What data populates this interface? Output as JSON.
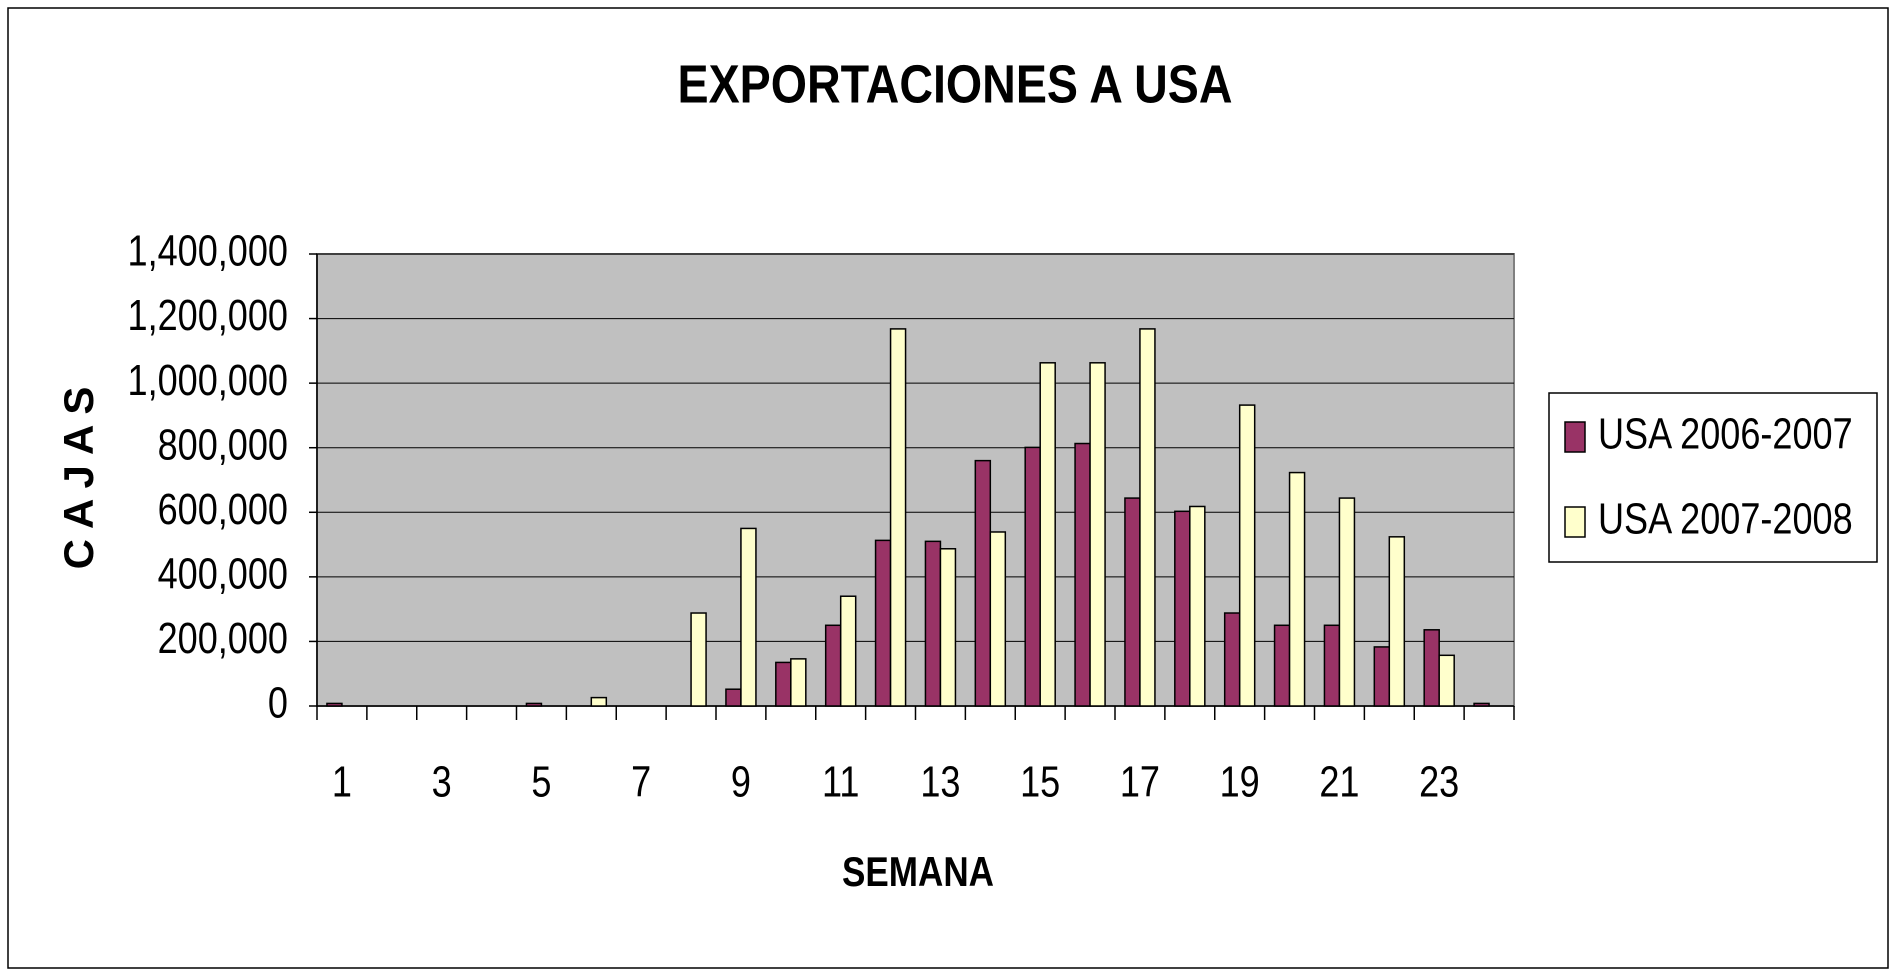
{
  "chart_data": {
    "type": "bar",
    "title": "EXPORTACIONES A USA",
    "x_label": "SEMANA",
    "y_label": "C A J A S",
    "categories": [
      "1",
      null,
      "3",
      null,
      "5",
      null,
      "7",
      null,
      "9",
      null,
      "11",
      null,
      "13",
      null,
      "15",
      null,
      "17",
      null,
      "19",
      null,
      "21",
      null,
      "23",
      null
    ],
    "series": [
      {
        "name": "USA 2006-2007",
        "color": "#993366",
        "values": [
          8000,
          0,
          0,
          0,
          8000,
          0,
          0,
          0,
          52000,
          135000,
          250000,
          513000,
          510000,
          760000,
          801000,
          813000,
          644000,
          603000,
          288000,
          250000,
          250000,
          183000,
          236000,
          8000
        ]
      },
      {
        "name": "USA 2007-2008",
        "color": "#ffffcc",
        "values": [
          0,
          0,
          0,
          0,
          0,
          26000,
          0,
          288000,
          550000,
          146000,
          340000,
          1168000,
          487000,
          539000,
          1063000,
          1063000,
          1168000,
          618000,
          932000,
          723000,
          644000,
          524000,
          157000,
          0
        ]
      }
    ],
    "ylim": [
      0,
      1400000
    ],
    "yticks": [
      0,
      {
        "value": 200000,
        "label": "200,000"
      },
      {
        "value": 400000,
        "label": "400,000"
      },
      {
        "value": 600000,
        "label": "600,000"
      },
      {
        "value": 800000,
        "label": "800,000"
      },
      {
        "value": 1000000,
        "label": "1,000,000"
      },
      {
        "value": 1200000,
        "label": "1,200,000"
      },
      {
        "value": 1400000,
        "label": "1,400,000"
      }
    ],
    "grid": true,
    "legend": "right"
  }
}
